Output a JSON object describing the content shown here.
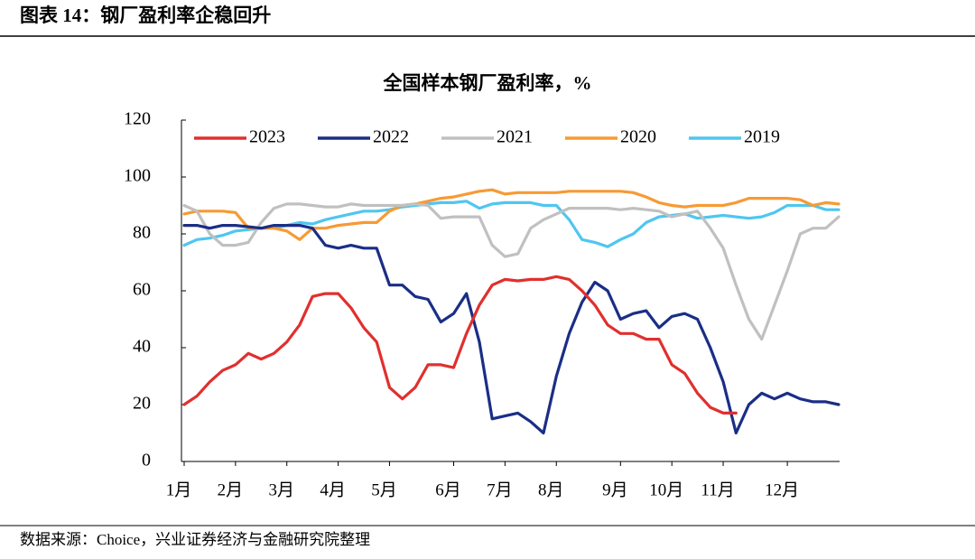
{
  "header": {
    "title": "图表 14：钢厂盈利率企稳回升"
  },
  "footer": {
    "source": "数据来源：Choice，兴业证券经济与金融研究院整理"
  },
  "chart_data": {
    "type": "line",
    "title": "全国样本钢厂盈利率，%",
    "categories": [
      "1月",
      null,
      null,
      null,
      "2月",
      null,
      null,
      null,
      "3月",
      null,
      null,
      null,
      "4月",
      null,
      null,
      null,
      "5月",
      null,
      null,
      null,
      null,
      "6月",
      null,
      null,
      null,
      "7月",
      null,
      null,
      null,
      "8月",
      null,
      null,
      null,
      null,
      "9月",
      null,
      null,
      null,
      "10月",
      null,
      null,
      null,
      "11月",
      null,
      null,
      null,
      null,
      "12月",
      null,
      null,
      null,
      null
    ],
    "ylim": [
      0,
      120
    ],
    "yticks": [
      0,
      20,
      40,
      60,
      80,
      100,
      120
    ],
    "grid": false,
    "legend": "top",
    "series": [
      {
        "name": "2023",
        "color": "#e0302e",
        "values": [
          20,
          23,
          28,
          32,
          34,
          38,
          36,
          38,
          42,
          48,
          58,
          59,
          59,
          54,
          47,
          42,
          26,
          22,
          26,
          34,
          34,
          33,
          45,
          55,
          62,
          64,
          63.5,
          64,
          64,
          65,
          64,
          60,
          55,
          48,
          45,
          45,
          43,
          43,
          34,
          31,
          24,
          19,
          17,
          17,
          null,
          null,
          null,
          null,
          null,
          null,
          null,
          null
        ]
      },
      {
        "name": "2022",
        "color": "#1a2e86",
        "values": [
          83,
          83,
          82,
          83,
          83,
          82.5,
          82,
          83,
          83,
          83,
          82,
          76,
          75,
          76,
          75,
          75,
          62,
          62,
          58,
          57,
          49,
          52,
          59,
          42,
          15,
          16,
          17,
          14,
          10,
          30,
          45,
          56,
          63,
          60,
          50,
          52,
          53,
          47,
          51,
          52,
          50,
          40,
          28,
          10,
          20,
          24,
          22,
          24,
          22,
          21,
          21,
          20
        ]
      },
      {
        "name": "2021",
        "color": "#c0c0c0",
        "values": [
          90,
          88,
          80,
          76,
          76,
          77,
          84,
          89,
          90.5,
          90.5,
          90,
          89.5,
          89.5,
          90.5,
          90,
          90,
          90,
          90,
          90.5,
          90,
          85.5,
          86,
          86,
          86,
          76,
          72,
          73,
          82,
          85,
          87,
          89,
          89,
          89,
          89,
          88.5,
          89,
          88.5,
          88,
          86,
          87,
          88,
          82,
          75,
          62,
          50,
          43,
          55,
          67,
          80,
          82,
          82,
          86
        ]
      },
      {
        "name": "2020",
        "color": "#f79a34",
        "values": [
          87,
          88,
          88,
          88,
          87.5,
          82,
          82,
          82,
          81,
          78,
          82,
          82,
          83,
          83.5,
          84,
          84,
          88,
          90,
          90.5,
          91.5,
          92.5,
          93,
          94,
          95,
          95.5,
          94,
          94.5,
          94.5,
          94.5,
          94.5,
          95,
          95,
          95,
          95,
          95,
          94.5,
          93,
          91,
          90,
          89.5,
          90,
          90,
          90,
          91,
          92.5,
          92.5,
          92.5,
          92.5,
          92,
          90,
          91,
          90.5
        ]
      },
      {
        "name": "2019",
        "color": "#4fc6f0",
        "values": [
          76,
          78,
          78.5,
          79.5,
          81,
          81.5,
          82,
          82,
          83,
          84,
          83.5,
          85,
          86,
          87,
          88,
          88,
          88.5,
          89.5,
          90,
          90.5,
          91,
          91,
          91.5,
          89,
          90.5,
          91,
          91,
          91,
          90,
          90,
          85,
          78,
          77,
          75.5,
          78,
          80,
          84,
          86,
          86.5,
          87,
          85.5,
          86,
          86.5,
          86,
          85.5,
          86,
          87.5,
          90,
          90,
          90,
          88.5,
          88.5
        ]
      }
    ]
  }
}
